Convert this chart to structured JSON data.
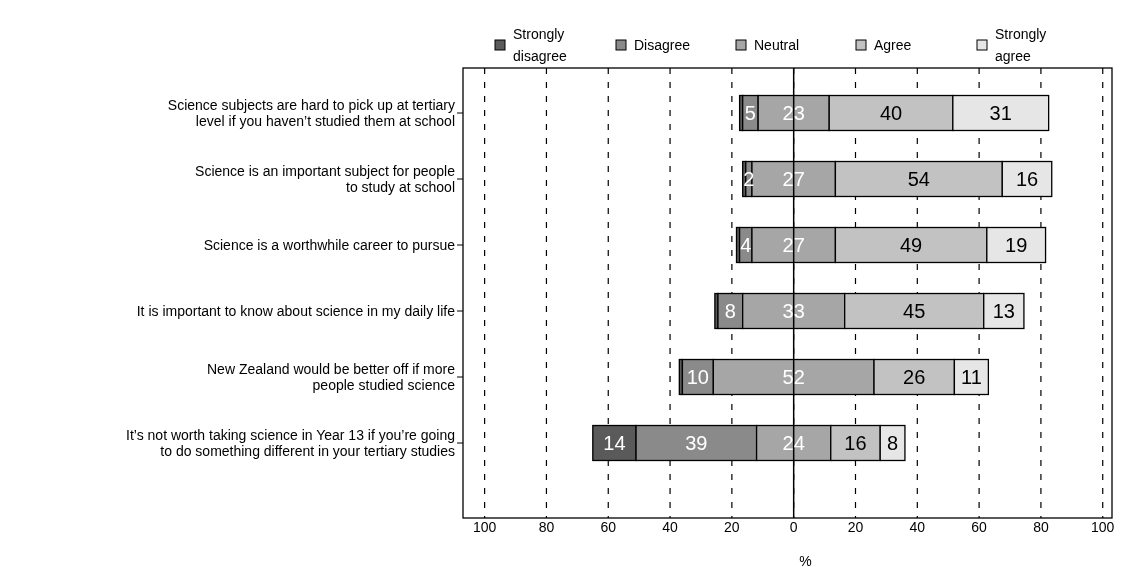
{
  "chart_data": {
    "type": "bar",
    "orientation": "horizontal",
    "categories": [
      "Science subjects are hard to pick up at tertiary\nlevel if you haven’t studied them at school",
      "Science is an important subject for people\nto study at school",
      "Science is a worthwhile career to pursue",
      "It is important to know about science in my daily life",
      "New Zealand would be better off if more\npeople studied science",
      "It’s not worth taking science in Year 13 if you’re going\nto do something different in your tertiary studies"
    ],
    "series": [
      {
        "name": "Strongly\ndisagree",
        "color": "#5a5a5a",
        "base": [
          -17.5,
          -16.5,
          -18.5,
          -25.5,
          -37,
          -65
        ],
        "values": [
          1,
          1,
          1,
          1,
          1,
          14
        ],
        "value_labels": [
          null,
          null,
          null,
          null,
          null,
          "14"
        ]
      },
      {
        "name": "Disagree",
        "color": "#8a8a8a",
        "base": [
          -16.5,
          -15.5,
          -17.5,
          -24.5,
          -36,
          -51
        ],
        "values": [
          5,
          2,
          4,
          8,
          10,
          39
        ],
        "value_labels": [
          "5",
          "2",
          "4",
          "8",
          "10",
          "39"
        ]
      },
      {
        "name": "Neutral",
        "color": "#a6a6a6",
        "base": [
          -11.5,
          -13.5,
          -13.5,
          -16.5,
          -26,
          -12
        ],
        "values": [
          23,
          27,
          27,
          33,
          52,
          24
        ],
        "value_labels": [
          "23",
          "27",
          "27",
          "33",
          "52",
          "24"
        ]
      },
      {
        "name": "Agree",
        "color": "#c2c2c2",
        "base": [
          11.5,
          13.5,
          13.5,
          16.5,
          26,
          12
        ],
        "values": [
          40,
          54,
          49,
          45,
          26,
          16
        ],
        "value_labels": [
          "40",
          "54",
          "49",
          "45",
          "26",
          "16"
        ]
      },
      {
        "name": "Strongly\nagree",
        "color": "#e6e6e6",
        "base": [
          51.5,
          67.5,
          62.5,
          61.5,
          52,
          28
        ],
        "values": [
          31,
          16,
          19,
          13,
          11,
          8
        ],
        "value_labels": [
          "31",
          "16",
          "19",
          "13",
          "11",
          "8"
        ]
      }
    ],
    "xlabel": "%",
    "xlim": [
      -107,
      103
    ],
    "xticks": [
      {
        "value": -100,
        "label": "100"
      },
      {
        "value": -80,
        "label": "80"
      },
      {
        "value": -60,
        "label": "60"
      },
      {
        "value": -40,
        "label": "40"
      },
      {
        "value": -20,
        "label": "20"
      },
      0,
      20,
      40,
      60,
      80,
      100
    ],
    "grid": "x",
    "line_style": "dashed",
    "ref_lines": [
      {
        "axis": "x",
        "value": 0,
        "color": "#000000"
      }
    ],
    "legend": "top"
  }
}
